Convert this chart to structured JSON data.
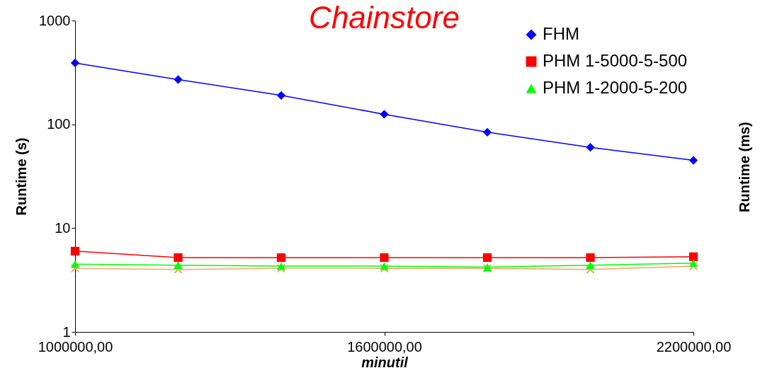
{
  "chart_data": {
    "type": "line",
    "title": "Chainstore",
    "xlabel": "minutil",
    "ylabel": "Runtime (s)",
    "log": "y",
    "legend": "top right",
    "grid": false,
    "annotations": [
      "Runtime (ms)"
    ],
    "x": [
      1000000,
      1200000,
      1400000,
      1600000,
      1800000,
      2000000,
      2200000
    ],
    "xlim": [
      1000000,
      2200000
    ],
    "xticks": [
      {
        "value": 1000000,
        "label": "1000000,00"
      },
      {
        "value": 1600000,
        "label": "1600000,00"
      },
      {
        "value": 2200000,
        "label": "2200000,00"
      }
    ],
    "ylim": [
      1,
      1000
    ],
    "yticks": [
      1,
      10,
      100,
      1000
    ],
    "series": [
      {
        "name": "FHM",
        "color": "#0000ff",
        "marker": "diamond",
        "values": [
          390,
          270,
          190,
          125,
          84,
          60,
          45
        ]
      },
      {
        "name": "PHM 1-5000-5-500",
        "color": "#ff0000",
        "marker": "square",
        "values": [
          6,
          5.2,
          5.2,
          5.2,
          5.2,
          5.2,
          5.3
        ]
      },
      {
        "name": "PHM 1-2000-5-200",
        "color": "#00ff00",
        "marker": "triangle",
        "values": [
          4.5,
          4.4,
          4.3,
          4.3,
          4.2,
          4.4,
          4.6
        ]
      },
      {
        "color": "#f4a460",
        "marker": "cross",
        "values": [
          4.1,
          4.0,
          4.1,
          4.1,
          4.1,
          4.0,
          4.3
        ]
      }
    ]
  }
}
